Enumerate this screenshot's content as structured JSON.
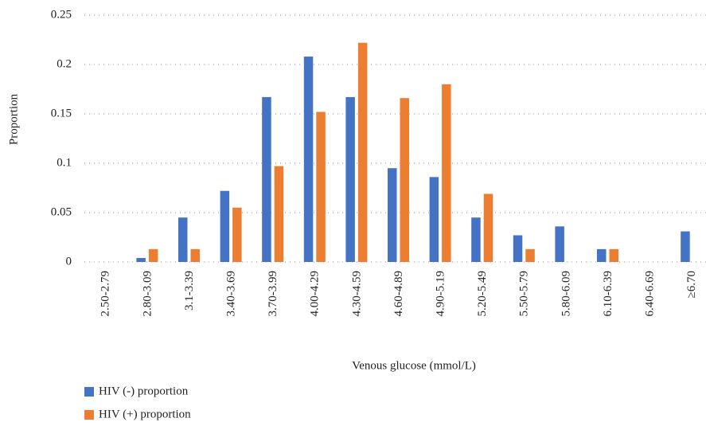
{
  "chart_data": {
    "type": "bar",
    "x_label": "Venous glucose (mmol/L)",
    "y_label": "Proportion",
    "categories": [
      "2.50-2.79",
      "2.80-3.09",
      "3.1-3.39",
      "3.40-3.69",
      "3.70-3.99",
      "4.00-4.29",
      "4.30-4.59",
      "4.60-4.89",
      "4.90-5.19",
      "5.20-5.49",
      "5.50-5.79",
      "5.80-6.09",
      "6.10-6.39",
      "6.40-6.69",
      "≥6.70"
    ],
    "series": [
      {
        "name": "HIV (-) proportion",
        "color": "#4472c4",
        "values": [
          0,
          0.004,
          0.045,
          0.072,
          0.167,
          0.208,
          0.167,
          0.095,
          0.086,
          0.045,
          0.027,
          0.036,
          0.013,
          0,
          0.031
        ]
      },
      {
        "name": "HIV (+) proportion",
        "color": "#ed7d31",
        "values": [
          0,
          0.013,
          0.013,
          0.055,
          0.097,
          0.152,
          0.222,
          0.166,
          0.18,
          0.069,
          0.013,
          0,
          0.013,
          0,
          0
        ]
      }
    ],
    "ylim": [
      0,
      0.25
    ],
    "yticks": [
      0,
      0.05,
      0.1,
      0.15,
      0.2,
      0.25
    ],
    "grid": true,
    "legend": "bottom-left"
  }
}
